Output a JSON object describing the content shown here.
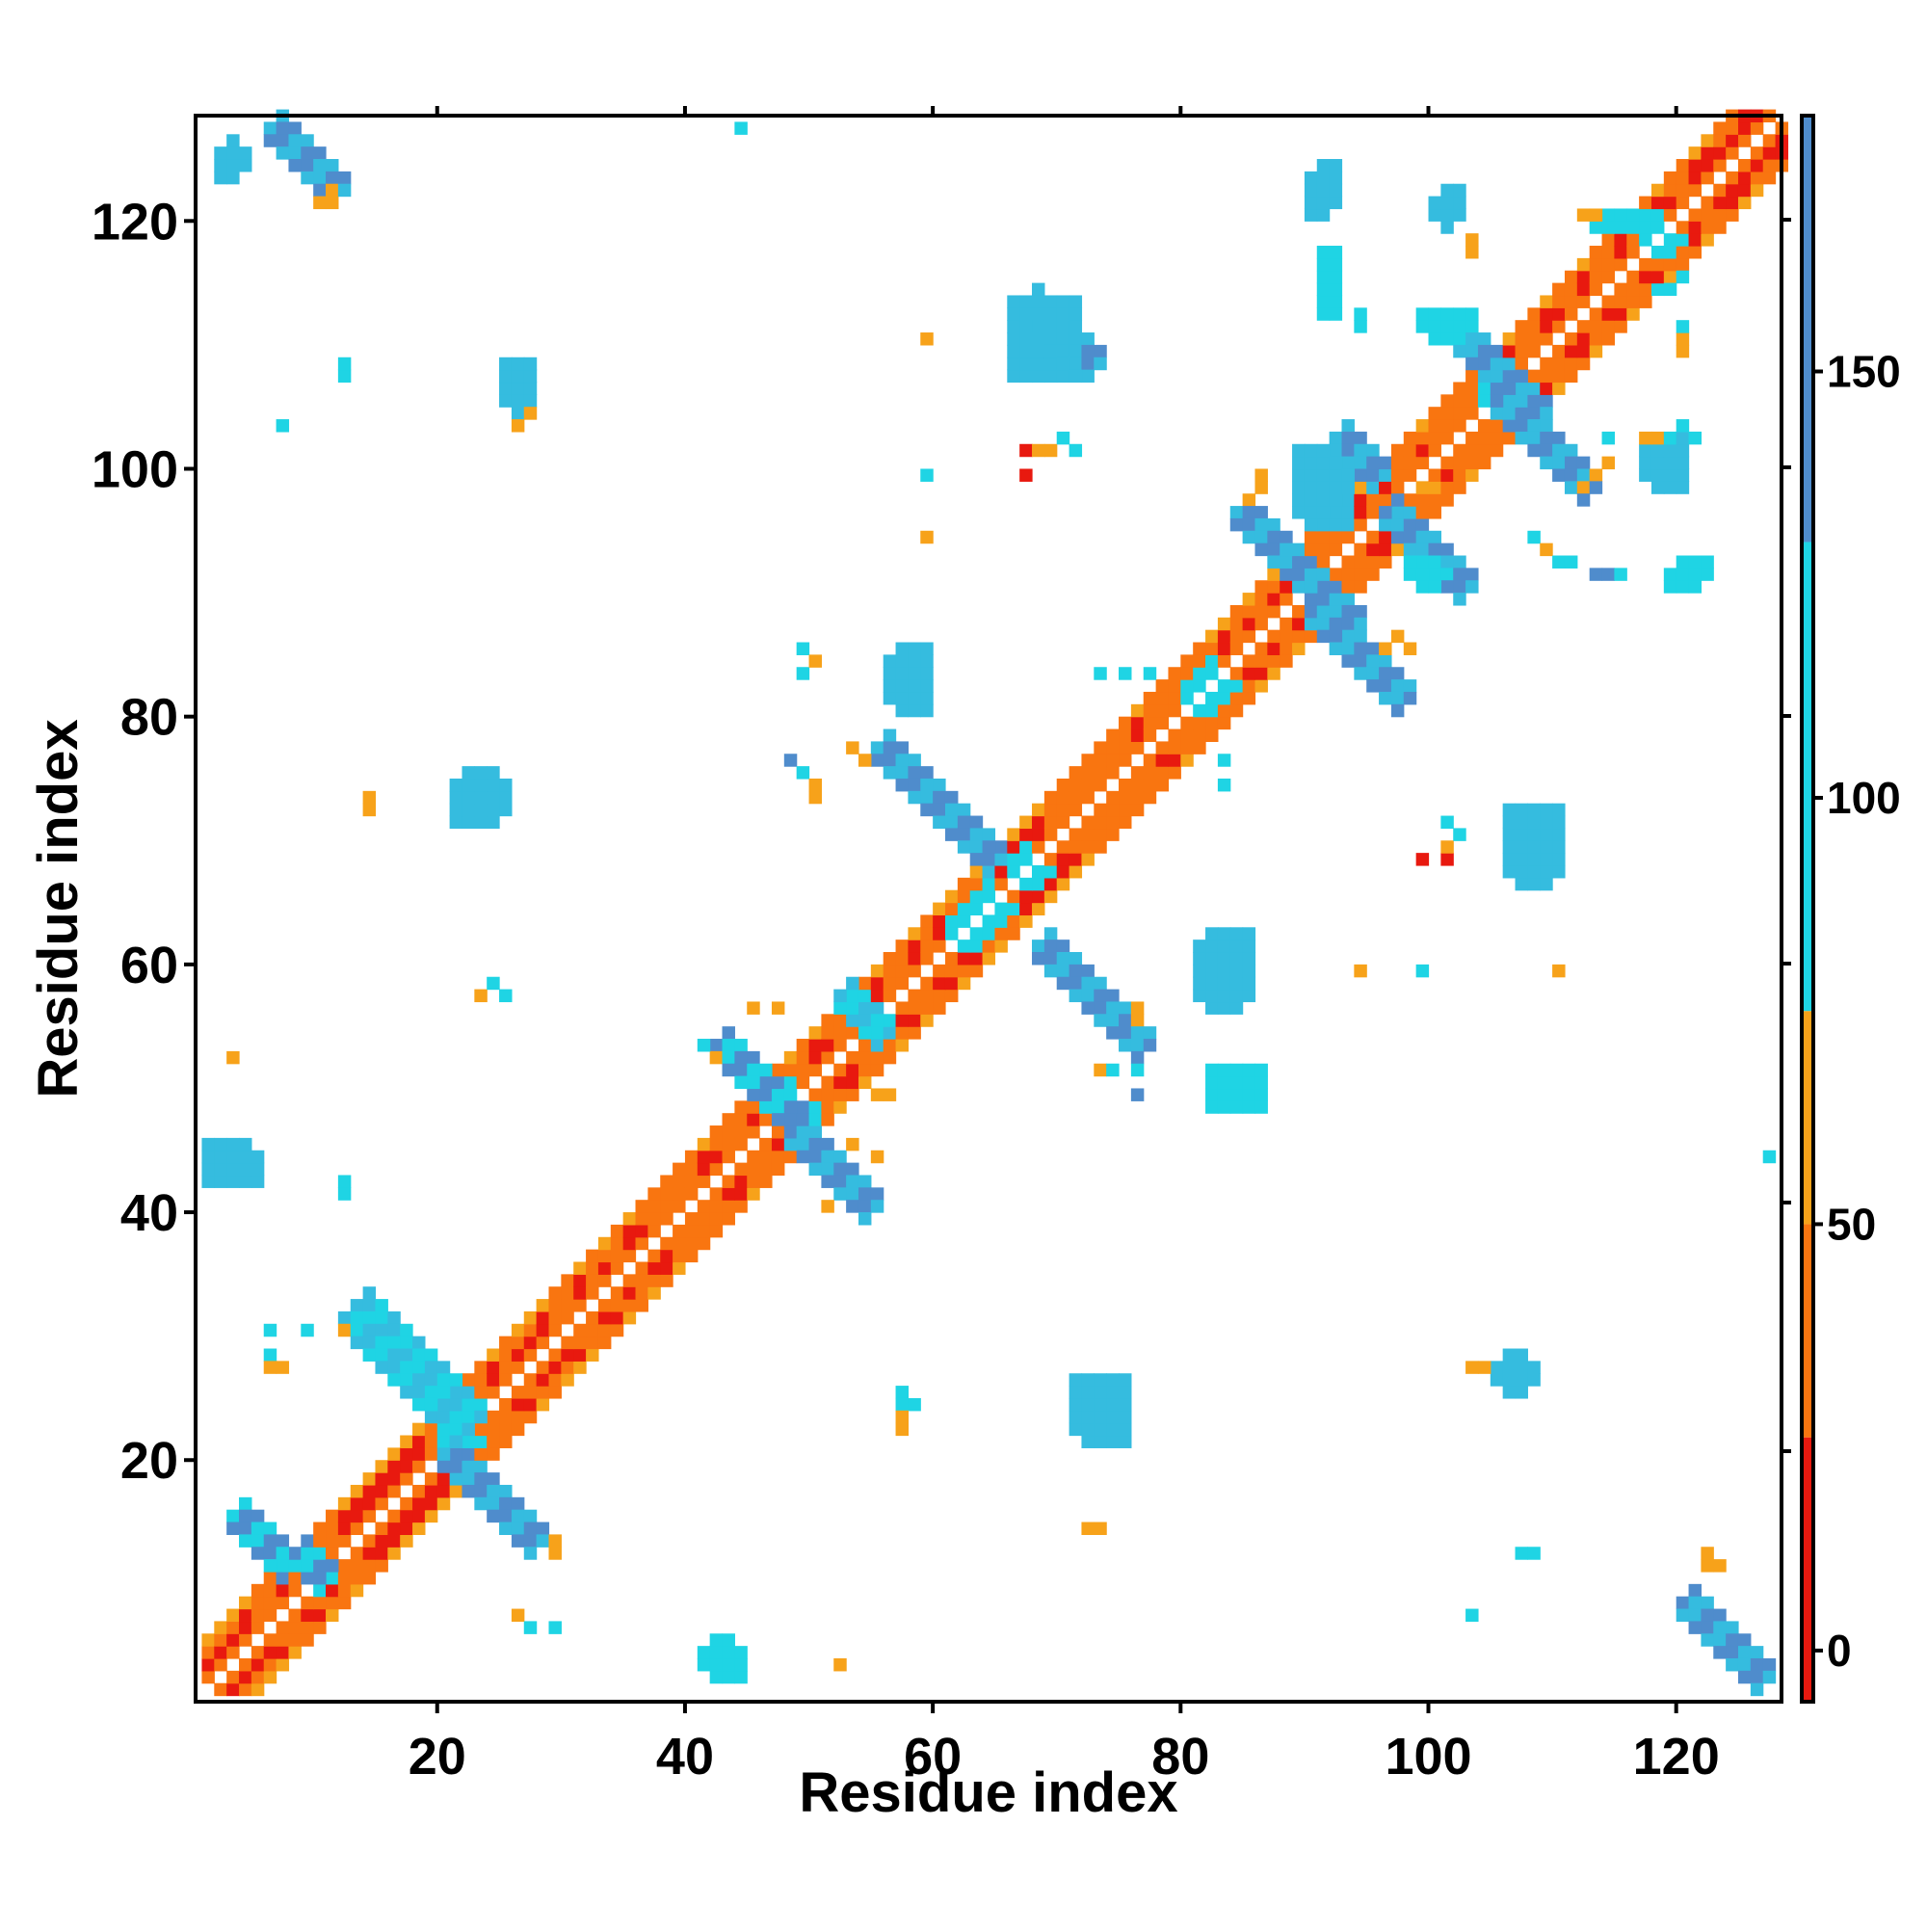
{
  "chart_data": {
    "type": "heatmap",
    "title": "",
    "xlabel": "Residue index",
    "ylabel": "Residue index",
    "xlim": [
      0.5,
      128.5
    ],
    "ylim": [
      0.5,
      128.5
    ],
    "x_ticks": [
      20,
      40,
      60,
      80,
      100,
      120
    ],
    "y_ticks": [
      20,
      40,
      60,
      80,
      100,
      120
    ],
    "x_tick_labels": [
      "20",
      "40",
      "60",
      "80",
      "100",
      "120"
    ],
    "y_tick_labels": [
      "20",
      "40",
      "60",
      "80",
      "100",
      "120"
    ],
    "grid": false,
    "colorbar": {
      "range": [
        -6,
        180
      ],
      "ticks": [
        0,
        50,
        100,
        150
      ],
      "tick_labels": [
        "0",
        "50",
        "100",
        "150"
      ],
      "placement": "right",
      "bands": [
        {
          "from": -6,
          "to": 25,
          "color": "#e8190f"
        },
        {
          "from": 25,
          "to": 50,
          "color": "#f97510"
        },
        {
          "from": 50,
          "to": 75,
          "color": "#f7a21a"
        },
        {
          "from": 75,
          "to": 130,
          "color": "#1fd4e4"
        },
        {
          "from": 130,
          "to": 180,
          "color": "#4f8ccc"
        }
      ]
    },
    "colors": {
      "red": "#e8190f",
      "orange": "#f97510",
      "amber": "#f7a21a",
      "cyan": "#1fd4e4",
      "teal": "#35bcdf",
      "steel": "#4f8ccc"
    },
    "cells_note_values": {
      "r": 10,
      "o": 40,
      "y": 65,
      "c": 100,
      "t": 120,
      "b": 160
    },
    "helices": [
      [
        1,
        9
      ],
      [
        10,
        19
      ],
      [
        25,
        39
      ],
      [
        42,
        48
      ],
      [
        51,
        56
      ],
      [
        57,
        66
      ],
      [
        68,
        79
      ],
      [
        81,
        90
      ],
      [
        92,
        101
      ],
      [
        103,
        108
      ],
      [
        110,
        128
      ]
    ],
    "band_blobs": [
      {
        "x": 12,
        "y": 31,
        "w": 5,
        "len": 10,
        "dir": "anti",
        "colors": "tc"
      },
      {
        "x": 3,
        "y": 15,
        "w": 4,
        "len": 5,
        "dir": "anti",
        "colors": "cb"
      },
      {
        "x": 20,
        "y": 20,
        "w": 4,
        "len": 8,
        "dir": "anti",
        "colors": "tb"
      },
      {
        "x": 42,
        "y": 53,
        "w": 4,
        "len": 8,
        "dir": "anti",
        "colors": "bc"
      },
      {
        "x": 48,
        "y": 46,
        "w": 4,
        "len": 7,
        "dir": "anti",
        "colors": "bt"
      },
      {
        "x": 52,
        "y": 57,
        "w": 4,
        "len": 4,
        "dir": "anti",
        "colors": "tc"
      },
      {
        "x": 55,
        "y": 77,
        "w": 4,
        "len": 10,
        "dir": "anti",
        "colors": "tb"
      },
      {
        "x": 68,
        "y": 61,
        "w": 4,
        "len": 9,
        "dir": "anti",
        "colors": "tb"
      },
      {
        "x": 84,
        "y": 96,
        "w": 4,
        "len": 10,
        "dir": "anti",
        "colors": "tb"
      },
      {
        "x": 90,
        "y": 88,
        "w": 4,
        "len": 8,
        "dir": "anti",
        "colors": "bt"
      },
      {
        "x": 96,
        "y": 96,
        "w": 4,
        "len": 7,
        "dir": "anti",
        "colors": "bt"
      },
      {
        "x": 92,
        "y": 102,
        "w": 3,
        "len": 4,
        "dir": "anti",
        "colors": "tb"
      },
      {
        "x": 101,
        "y": 111,
        "w": 4,
        "len": 8,
        "dir": "anti",
        "colors": "tb"
      },
      {
        "x": 105,
        "y": 105,
        "w": 4,
        "len": 8,
        "dir": "anti",
        "colors": "bt"
      },
      {
        "x": 67,
        "y": 113,
        "w": 4,
        "len": 6,
        "dir": "anti",
        "colors": "tb"
      },
      {
        "x": 6,
        "y": 127,
        "w": 3,
        "len": 6,
        "dir": "anti",
        "colors": "tb"
      },
      {
        "x": 120,
        "y": 8,
        "w": 3,
        "len": 7,
        "dir": "anti",
        "colors": "bt"
      },
      {
        "x": 8,
        "y": 12,
        "w": 3,
        "len": 3,
        "dir": "anti",
        "colors": "bc"
      },
      {
        "x": 14,
        "y": 32,
        "w": 2,
        "len": 4,
        "dir": "anti",
        "colors": "tc"
      }
    ],
    "rect_blobs": [
      {
        "x0": 1,
        "x1": 5,
        "y0": 42,
        "y1": 45,
        "colors": "tc"
      },
      {
        "x0": 11,
        "x1": 13,
        "y0": 41,
        "y1": 42,
        "colors": "c"
      },
      {
        "x0": 21,
        "x1": 25,
        "y0": 71,
        "y1": 75,
        "colors": "tb"
      },
      {
        "x0": 25,
        "x1": 27,
        "y0": 104,
        "y1": 108,
        "colors": "tc"
      },
      {
        "x0": 41,
        "x1": 44,
        "y0": 2,
        "y1": 5,
        "colors": "ct"
      },
      {
        "x0": 56,
        "x1": 59,
        "y0": 80,
        "y1": 85,
        "colors": "tc"
      },
      {
        "x0": 66,
        "x1": 71,
        "y0": 107,
        "y1": 113,
        "colors": "tb"
      },
      {
        "x0": 71,
        "x1": 75,
        "y0": 21,
        "y1": 26,
        "colors": "tb"
      },
      {
        "x0": 81,
        "x1": 85,
        "y0": 56,
        "y1": 62,
        "colors": "tb"
      },
      {
        "x0": 82,
        "x1": 86,
        "y0": 48,
        "y1": 51,
        "colors": "c"
      },
      {
        "x0": 90,
        "x1": 92,
        "y0": 120,
        "y1": 124,
        "colors": "tc"
      },
      {
        "x0": 98,
        "x1": 101,
        "y0": 90,
        "y1": 92,
        "colors": "ct"
      },
      {
        "x0": 100,
        "x1": 102,
        "y0": 119,
        "y1": 122,
        "colors": "tc"
      },
      {
        "x0": 106,
        "x1": 110,
        "y0": 66,
        "y1": 72,
        "colors": "tb"
      },
      {
        "x0": 105,
        "x1": 108,
        "y0": 25,
        "y1": 28,
        "colors": "tb"
      },
      {
        "x0": 119,
        "x1": 122,
        "y0": 90,
        "y1": 92,
        "colors": "ct"
      },
      {
        "x0": 117,
        "x1": 120,
        "y0": 98,
        "y1": 102,
        "colors": "tb"
      },
      {
        "x0": 89,
        "x1": 93,
        "y0": 95,
        "y1": 101,
        "colors": "tb"
      },
      {
        "x0": 91,
        "x1": 92,
        "y0": 112,
        "y1": 117,
        "colors": "cb"
      },
      {
        "x0": 99,
        "x1": 103,
        "y0": 110,
        "y1": 112,
        "colors": "ct"
      },
      {
        "x0": 113,
        "x1": 117,
        "y0": 119,
        "y1": 120,
        "colors": "c"
      },
      {
        "x0": 2,
        "x1": 4,
        "y0": 123,
        "y1": 126,
        "colors": "tc"
      }
    ],
    "points": [
      [
        44,
        127,
        "c"
      ],
      [
        10,
        121,
        "y"
      ],
      [
        11,
        121,
        "y"
      ],
      [
        11,
        122,
        "y"
      ],
      [
        7,
        103,
        "c"
      ],
      [
        12,
        107,
        "c"
      ],
      [
        12,
        108,
        "c"
      ],
      [
        26,
        103,
        "y"
      ],
      [
        27,
        104,
        "y"
      ],
      [
        59,
        110,
        "y"
      ],
      [
        67,
        101,
        "r"
      ],
      [
        68,
        101,
        "y"
      ],
      [
        69,
        101,
        "y"
      ],
      [
        70,
        102,
        "c"
      ],
      [
        71,
        101,
        "c"
      ],
      [
        67,
        99,
        "r"
      ],
      [
        59,
        99,
        "c"
      ],
      [
        59,
        94,
        "y"
      ],
      [
        14,
        73,
        "y"
      ],
      [
        14,
        72,
        "y"
      ],
      [
        3,
        52,
        "y"
      ],
      [
        23,
        57,
        "y"
      ],
      [
        24,
        58,
        "c"
      ],
      [
        25,
        57,
        "c"
      ],
      [
        45,
        56,
        "y"
      ],
      [
        47,
        56,
        "y"
      ],
      [
        41,
        53,
        "c"
      ],
      [
        42,
        52,
        "y"
      ],
      [
        49,
        85,
        "c"
      ],
      [
        49,
        83,
        "c"
      ],
      [
        50,
        84,
        "y"
      ],
      [
        48,
        76,
        "b"
      ],
      [
        49,
        75,
        "c"
      ],
      [
        50,
        74,
        "y"
      ],
      [
        50,
        73,
        "y"
      ],
      [
        53,
        77,
        "y"
      ],
      [
        54,
        76,
        "y"
      ],
      [
        53,
        45,
        "y"
      ],
      [
        55,
        44,
        "y"
      ],
      [
        55,
        49,
        "y"
      ],
      [
        51,
        40,
        "y"
      ],
      [
        56,
        49,
        "y"
      ],
      [
        73,
        83,
        "c"
      ],
      [
        75,
        83,
        "c"
      ],
      [
        77,
        83,
        "c"
      ],
      [
        83,
        74,
        "c"
      ],
      [
        83,
        76,
        "c"
      ],
      [
        76,
        56,
        "y"
      ],
      [
        76,
        55,
        "y"
      ],
      [
        73,
        51,
        "y"
      ],
      [
        74,
        51,
        "c"
      ],
      [
        76,
        51,
        "c"
      ],
      [
        76,
        49,
        "b"
      ],
      [
        94,
        59,
        "y"
      ],
      [
        99,
        59,
        "c"
      ],
      [
        110,
        59,
        "y"
      ],
      [
        99,
        68,
        "r"
      ],
      [
        101,
        68,
        "r"
      ],
      [
        101,
        69,
        "y"
      ],
      [
        101,
        71,
        "c"
      ],
      [
        102,
        70,
        "c"
      ],
      [
        108,
        94,
        "c"
      ],
      [
        109,
        93,
        "y"
      ],
      [
        110,
        92,
        "c"
      ],
      [
        111,
        92,
        "c"
      ],
      [
        113,
        91,
        "b"
      ],
      [
        114,
        91,
        "b"
      ],
      [
        115,
        91,
        "c"
      ],
      [
        86,
        99,
        "y"
      ],
      [
        86,
        98,
        "y"
      ],
      [
        85,
        97,
        "y"
      ],
      [
        96,
        85,
        "y"
      ],
      [
        97,
        86,
        "y"
      ],
      [
        98,
        85,
        "y"
      ],
      [
        103,
        27,
        "y"
      ],
      [
        104,
        27,
        "y"
      ],
      [
        107,
        12,
        "c"
      ],
      [
        108,
        12,
        "c"
      ],
      [
        103,
        7,
        "c"
      ],
      [
        122,
        12,
        "y"
      ],
      [
        122,
        11,
        "y"
      ],
      [
        123,
        11,
        "y"
      ],
      [
        127,
        44,
        "c"
      ],
      [
        57,
        25,
        "c"
      ],
      [
        57,
        24,
        "c"
      ],
      [
        58,
        24,
        "c"
      ],
      [
        57,
        23,
        "y"
      ],
      [
        57,
        22,
        "y"
      ],
      [
        72,
        14,
        "y"
      ],
      [
        73,
        14,
        "y"
      ],
      [
        52,
        3,
        "y"
      ],
      [
        26,
        7,
        "y"
      ],
      [
        27,
        6,
        "c"
      ],
      [
        29,
        6,
        "c"
      ],
      [
        29,
        12,
        "y"
      ],
      [
        29,
        13,
        "y"
      ],
      [
        6,
        30,
        "c"
      ],
      [
        6,
        28,
        "c"
      ],
      [
        6,
        27,
        "y"
      ],
      [
        7,
        27,
        "y"
      ],
      [
        12,
        30,
        "y"
      ],
      [
        9,
        30,
        "c"
      ],
      [
        112,
        120,
        "y"
      ],
      [
        113,
        120,
        "y"
      ],
      [
        103,
        118,
        "y"
      ],
      [
        103,
        117,
        "y"
      ],
      [
        94,
        112,
        "c"
      ],
      [
        94,
        111,
        "c"
      ],
      [
        120,
        110,
        "y"
      ],
      [
        120,
        109,
        "y"
      ],
      [
        120,
        111,
        "c"
      ],
      [
        112,
        98,
        "y"
      ],
      [
        113,
        99,
        "y"
      ],
      [
        114,
        102,
        "c"
      ],
      [
        114,
        100,
        "y"
      ],
      [
        118,
        102,
        "y"
      ],
      [
        117,
        102,
        "y"
      ],
      [
        119,
        102,
        "c"
      ],
      [
        120,
        103,
        "c"
      ],
      [
        121,
        102,
        "c"
      ],
      [
        118,
        114,
        "c"
      ],
      [
        119,
        114,
        "c"
      ],
      [
        120,
        115,
        "c"
      ],
      [
        99,
        98,
        "y"
      ],
      [
        100,
        98,
        "y"
      ],
      [
        86,
        98,
        "y"
      ]
    ]
  }
}
